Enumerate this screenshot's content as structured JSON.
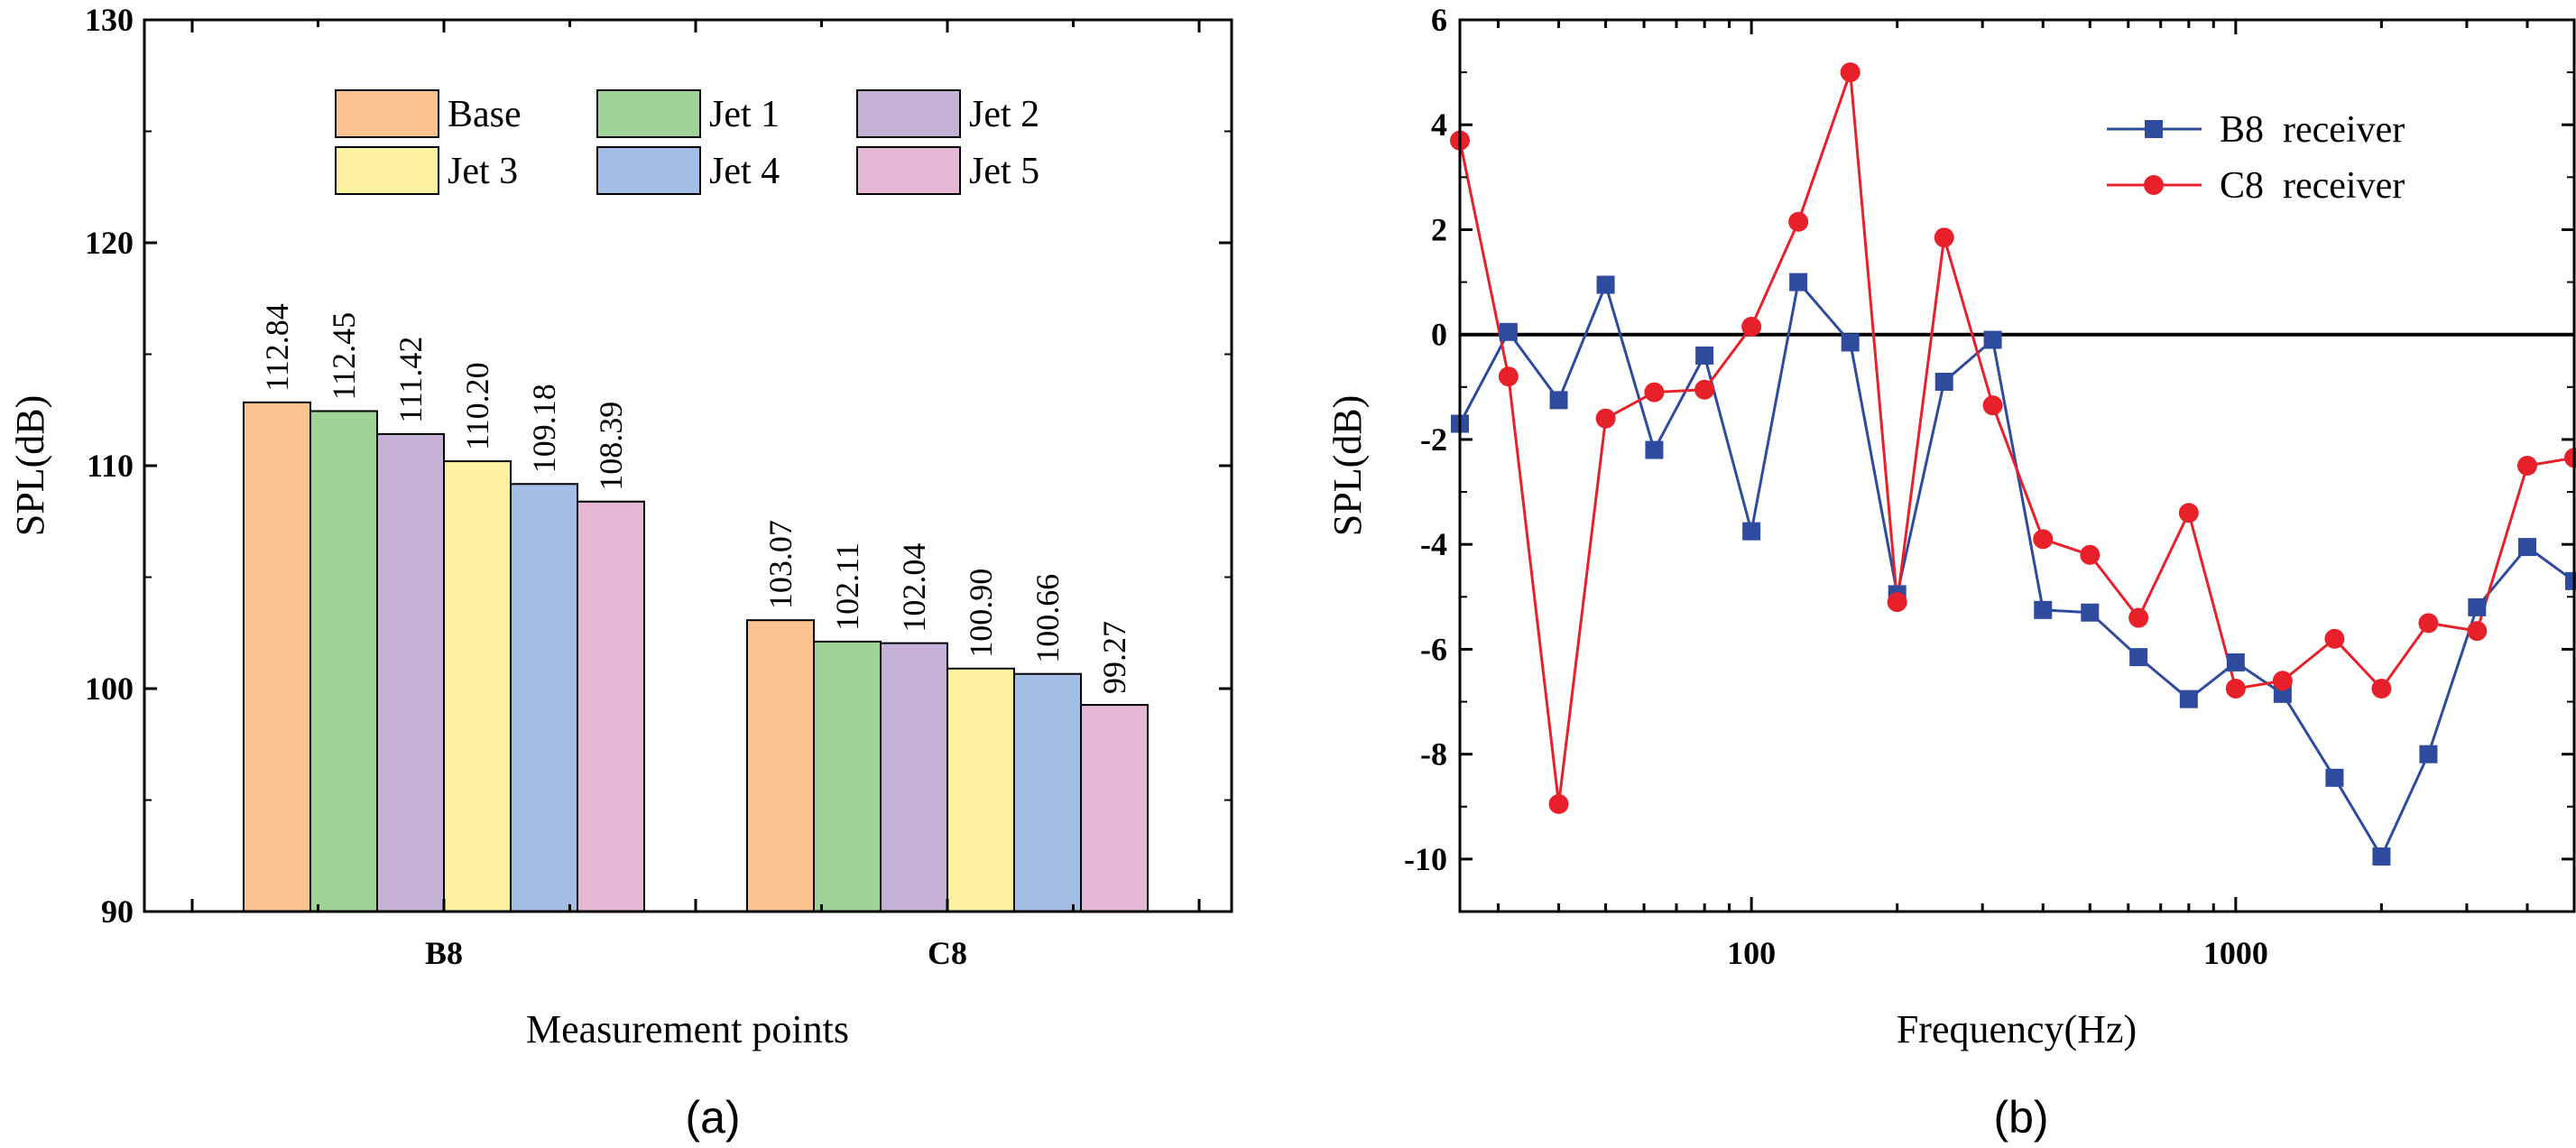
{
  "chart_data": [
    {
      "type": "bar",
      "panel_label": "(a)",
      "xlabel": "Measurement points",
      "ylabel": "SPL(dB)",
      "ylim": [
        90,
        130
      ],
      "yticks": [
        "90",
        "100",
        "110",
        "120",
        "130"
      ],
      "categories": [
        "B8",
        "C8"
      ],
      "series": [
        {
          "name": "Base",
          "values": [
            112.84,
            103.07
          ],
          "labels": [
            "112.84",
            "103.07"
          ]
        },
        {
          "name": "Jet 1",
          "values": [
            112.45,
            102.11
          ],
          "labels": [
            "112.45",
            "102.11"
          ]
        },
        {
          "name": "Jet 2",
          "values": [
            111.42,
            102.04
          ],
          "labels": [
            "111.42",
            "102.04"
          ]
        },
        {
          "name": "Jet 3",
          "values": [
            110.2,
            100.9
          ],
          "labels": [
            "110.20",
            "100.90"
          ]
        },
        {
          "name": "Jet 4",
          "values": [
            109.18,
            100.66
          ],
          "labels": [
            "109.18",
            "100.66"
          ]
        },
        {
          "name": "Jet 5",
          "values": [
            108.39,
            99.27
          ],
          "labels": [
            "108.39",
            "99.27"
          ]
        }
      ],
      "colors": [
        "#F9C28F",
        "#A0D497",
        "#C5B0D6",
        "#FCF2A0",
        "#A3BEE4",
        "#E7B6D4"
      ],
      "legend_position": "top-center"
    },
    {
      "type": "line",
      "panel_label": "(b)",
      "xlabel": "Frequency(Hz)",
      "ylabel": "SPL(dB)",
      "xscale": "log",
      "xlim": [
        25,
        5000
      ],
      "ylim": [
        -11,
        6
      ],
      "xticks": [
        "100",
        "1000"
      ],
      "yticks": [
        "-10",
        "-8",
        "-6",
        "-4",
        "-2",
        "0",
        "2",
        "4",
        "6"
      ],
      "reference_line_y": 0,
      "x": [
        25,
        31.5,
        40,
        50,
        63,
        80,
        100,
        125,
        160,
        200,
        250,
        315,
        400,
        500,
        630,
        800,
        1000,
        1250,
        1600,
        2000,
        2500,
        3150,
        4000,
        5000
      ],
      "series": [
        {
          "name": "B8  receiver",
          "color": "#2E4B9E",
          "marker": "square",
          "values": [
            -1.7,
            0.05,
            -1.25,
            0.95,
            -2.2,
            -0.4,
            -3.75,
            1.0,
            -0.15,
            -4.95,
            -0.9,
            -0.1,
            -5.25,
            -5.3,
            -6.15,
            -6.95,
            -6.25,
            -6.85,
            -8.45,
            -9.95,
            -8.0,
            -5.2,
            -4.05,
            -4.7
          ]
        },
        {
          "name": "C8  receiver",
          "color": "#E8202A",
          "marker": "circle",
          "values": [
            3.7,
            -0.8,
            -8.95,
            -1.6,
            -1.1,
            -1.05,
            0.15,
            2.15,
            5.0,
            -5.1,
            1.85,
            -1.35,
            -3.9,
            -4.2,
            -5.4,
            -3.4,
            -6.75,
            -6.6,
            -5.8,
            -6.75,
            -5.5,
            -5.65,
            -2.5,
            -2.35
          ]
        }
      ],
      "legend_position": "top-right"
    }
  ]
}
